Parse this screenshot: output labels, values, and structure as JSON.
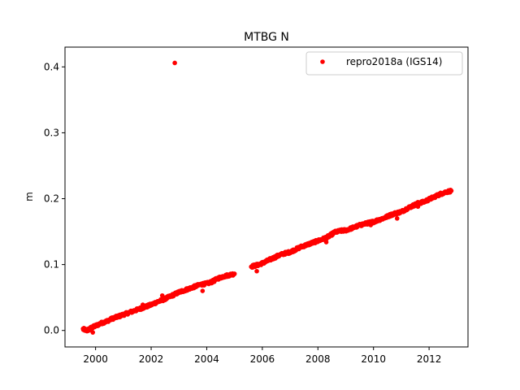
{
  "chart_data": {
    "type": "scatter",
    "title": "MTBG N",
    "xlabel": "",
    "ylabel": "m",
    "xlim": [
      1998.9,
      2013.4
    ],
    "ylim": [
      -0.025,
      0.43
    ],
    "x_ticks": [
      2000,
      2002,
      2004,
      2006,
      2008,
      2010,
      2012
    ],
    "x_tick_labels": [
      "2000",
      "2002",
      "2004",
      "2006",
      "2008",
      "2010",
      "2012"
    ],
    "y_ticks": [
      0.0,
      0.1,
      0.2,
      0.3,
      0.4
    ],
    "y_tick_labels": [
      "0.0",
      "0.1",
      "0.2",
      "0.3",
      "0.4"
    ],
    "grid": false,
    "legend_position": "top-right",
    "series": [
      {
        "name": "repro2018a (IGS14)",
        "color": "#ff0000",
        "marker": "circle",
        "segments": [
          {
            "x": [
              1999.55,
              1999.7,
              1999.85,
              2000.0,
              2000.2,
              2000.4,
              2000.6,
              2000.8,
              2001.0,
              2001.2,
              2001.4,
              2001.6,
              2001.8,
              2002.0,
              2002.2,
              2002.4,
              2002.6,
              2002.8,
              2003.0,
              2003.2,
              2003.4,
              2003.6,
              2003.8,
              2004.0,
              2004.2,
              2004.4,
              2004.6,
              2004.8,
              2005.0
            ],
            "y": [
              0.002,
              0.0,
              0.004,
              0.007,
              0.011,
              0.014,
              0.018,
              0.021,
              0.024,
              0.027,
              0.03,
              0.033,
              0.036,
              0.039,
              0.043,
              0.046,
              0.05,
              0.054,
              0.058,
              0.061,
              0.064,
              0.067,
              0.07,
              0.071,
              0.074,
              0.079,
              0.082,
              0.084,
              0.086
            ]
          },
          {
            "x": [
              2005.6,
              2005.8,
              2006.0,
              2006.2,
              2006.4,
              2006.6,
              2006.8,
              2007.0,
              2007.2,
              2007.4,
              2007.6,
              2007.8,
              2008.0,
              2008.2,
              2008.4,
              2008.6,
              2008.8,
              2009.0,
              2009.2,
              2009.4,
              2009.6,
              2009.8,
              2010.0,
              2010.2,
              2010.4,
              2010.6,
              2010.8,
              2011.0,
              2011.2,
              2011.4,
              2011.6,
              2011.8,
              2012.0,
              2012.2,
              2012.4,
              2012.6,
              2012.8
            ],
            "y": [
              0.097,
              0.099,
              0.102,
              0.106,
              0.11,
              0.114,
              0.117,
              0.119,
              0.123,
              0.127,
              0.13,
              0.133,
              0.136,
              0.139,
              0.143,
              0.149,
              0.151,
              0.152,
              0.155,
              0.158,
              0.161,
              0.163,
              0.165,
              0.168,
              0.171,
              0.175,
              0.178,
              0.18,
              0.185,
              0.189,
              0.193,
              0.195,
              0.199,
              0.203,
              0.207,
              0.21,
              0.212
            ]
          }
        ],
        "outliers": [
          {
            "x": 2002.85,
            "y": 0.406
          },
          {
            "x": 2003.85,
            "y": 0.06
          },
          {
            "x": 2005.8,
            "y": 0.09
          },
          {
            "x": 2010.85,
            "y": 0.17
          },
          {
            "x": 2002.4,
            "y": 0.053
          },
          {
            "x": 2001.7,
            "y": 0.039
          },
          {
            "x": 1999.9,
            "y": -0.003
          },
          {
            "x": 2009.9,
            "y": 0.16
          },
          {
            "x": 2011.6,
            "y": 0.188
          },
          {
            "x": 2008.3,
            "y": 0.134
          }
        ]
      }
    ]
  }
}
